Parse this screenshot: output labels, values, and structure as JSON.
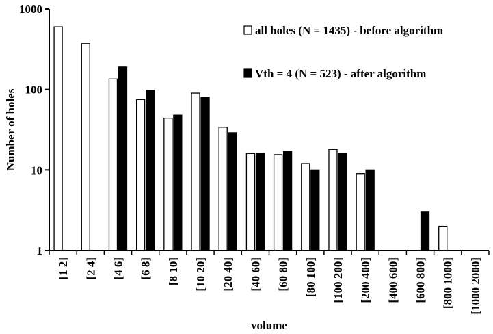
{
  "chart_data": {
    "type": "bar",
    "title": "",
    "xlabel": "volume",
    "ylabel": "Number of holes",
    "yscale": "log",
    "ylim": [
      1,
      1000
    ],
    "yticks": [
      "1",
      "10",
      "100",
      "1000"
    ],
    "grid": false,
    "legend_position": "top-right",
    "categories": [
      "[1 2]",
      "[2 4]",
      "[4 6]",
      "[6 8]",
      "[8 10]",
      "[10 20]",
      "[20 40]",
      "[40 60]",
      "[60 80]",
      "[80 100]",
      "[100 200]",
      "[200 400]",
      "[400 600]",
      "[600 800]",
      "[800 1000]",
      "[1000 2000]"
    ],
    "series": [
      {
        "name": "all holes (N = 1435) - before algorithm",
        "color": "#ffffff",
        "values": [
          600,
          370,
          135,
          75,
          44,
          90,
          34,
          16,
          15.5,
          12,
          18,
          9,
          null,
          null,
          2,
          null
        ]
      },
      {
        "name": "Vth = 4 (N = 523) - after algorithm",
        "color": "#000000",
        "values": [
          null,
          null,
          190,
          98,
          48,
          80,
          29,
          16,
          17,
          10,
          16,
          10,
          null,
          3,
          null,
          null
        ]
      }
    ]
  }
}
